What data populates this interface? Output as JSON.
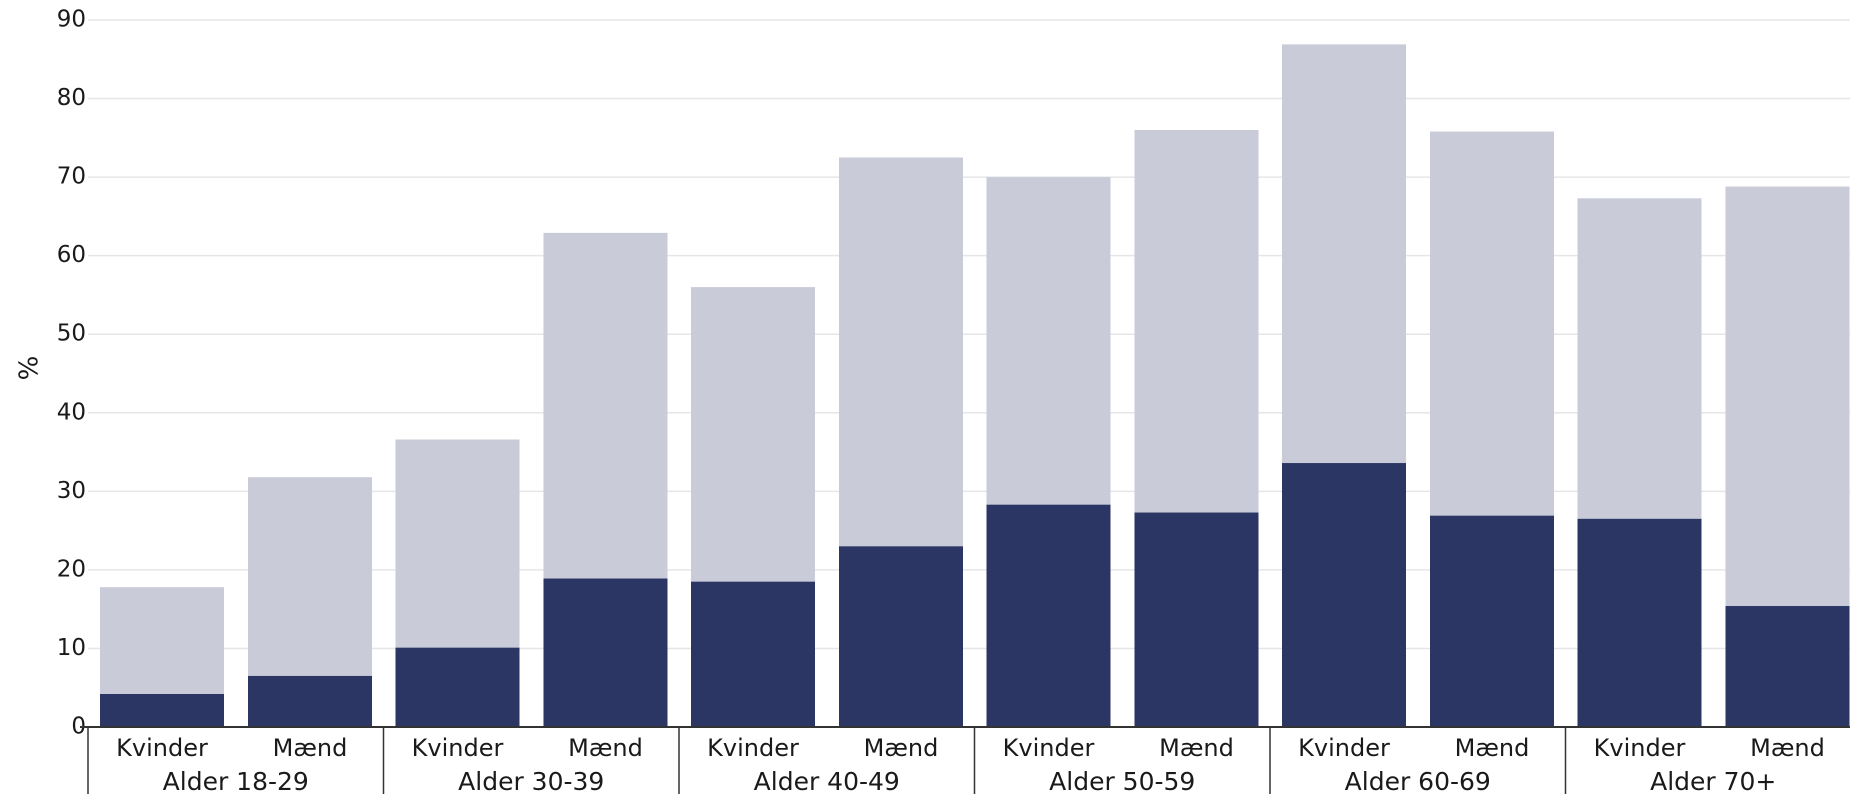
{
  "chart_data": {
    "type": "bar",
    "stacking": "overlay",
    "title": "",
    "xlabel": "",
    "ylabel": "%",
    "ylim": [
      0,
      90
    ],
    "yticks": [
      0,
      10,
      20,
      30,
      40,
      50,
      60,
      70,
      80,
      90
    ],
    "grid": true,
    "legend": "none",
    "groups": [
      "Alder 18-29",
      "Alder 30-39",
      "Alder 40-49",
      "Alder 50-59",
      "Alder 60-69",
      "Alder 70+"
    ],
    "categories": [
      "Kvinder",
      "Mænd"
    ],
    "series": [
      {
        "color": "#c9cbd8",
        "values": [
          [
            17.8,
            31.8
          ],
          [
            36.6,
            62.9
          ],
          [
            56.0,
            72.5
          ],
          [
            70.0,
            76.0
          ],
          [
            86.9,
            75.8
          ],
          [
            67.3,
            68.8
          ]
        ]
      },
      {
        "color": "#2b3664",
        "values": [
          [
            4.2,
            6.5
          ],
          [
            10.1,
            18.9
          ],
          [
            18.5,
            23.0
          ],
          [
            28.3,
            27.3
          ],
          [
            33.6,
            26.9
          ],
          [
            26.5,
            15.4
          ]
        ]
      }
    ]
  }
}
